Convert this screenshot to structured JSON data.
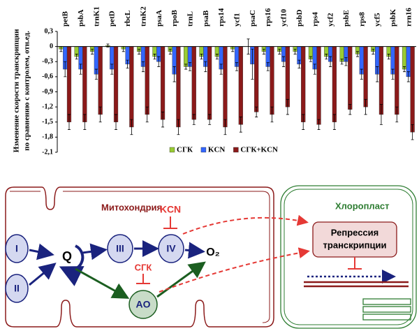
{
  "chart_data": {
    "type": "bar",
    "y_label": [
      "Изменение скорости транскрипции",
      "по сравнению с контролем, отн.ед."
    ],
    "categories": [
      "petB",
      "psbA",
      "trnK1",
      "petD",
      "rbcL",
      "trnK2",
      "psaA",
      "rpoB",
      "trnL",
      "psaB",
      "rps14",
      "ycf1",
      "psaC",
      "rps16",
      "ycf10",
      "psbD",
      "rps4",
      "ycf2",
      "psbE",
      "rps8",
      "ycf5",
      "psbK",
      "rrn16"
    ],
    "series": [
      {
        "name": "СГК",
        "color": "#99cc33",
        "values": [
          -0.05,
          -0.2,
          -0.1,
          0.02,
          -0.05,
          -0.1,
          -0.2,
          -0.1,
          -0.4,
          -0.2,
          -0.2,
          -0.05,
          0,
          -0.1,
          -0.1,
          -0.1,
          -0.25,
          -0.2,
          -0.3,
          -0.15,
          -0.1,
          -0.2,
          -0.45
        ],
        "errors": [
          0.05,
          0.05,
          0.05,
          0.03,
          0.05,
          0.05,
          0.05,
          0.05,
          0.05,
          0.05,
          0.05,
          0.05,
          0.15,
          0.05,
          0.05,
          0.05,
          0.05,
          0.05,
          0.05,
          0.05,
          0.05,
          0.05,
          0.05
        ]
      },
      {
        "name": "KCN",
        "color": "#3366ff",
        "values": [
          -0.45,
          -0.45,
          -0.55,
          -0.45,
          -0.35,
          -0.4,
          -0.3,
          -0.55,
          -0.4,
          -0.4,
          -0.45,
          -0.4,
          -0.35,
          -0.4,
          -0.3,
          -0.35,
          -0.45,
          -0.3,
          -0.3,
          -0.55,
          -0.55,
          -0.55,
          -0.6
        ],
        "errors": [
          0.15,
          0.1,
          0.1,
          0.1,
          0.08,
          0.1,
          0.1,
          0.15,
          0.08,
          0.1,
          0.1,
          0.08,
          0.3,
          0.08,
          0.1,
          0.08,
          0.1,
          0.1,
          0.08,
          0.1,
          0.15,
          0.1,
          0.1
        ]
      },
      {
        "name": "СГК+KCN",
        "color": "#8b1a1a",
        "values": [
          -1.5,
          -1.5,
          -1.35,
          -1.5,
          -1.6,
          -1.35,
          -1.45,
          -1.6,
          -1.45,
          -1.45,
          -1.6,
          -1.55,
          -1.3,
          -1.35,
          -1.2,
          -1.5,
          -1.55,
          -1.5,
          -1.25,
          -1.2,
          -1.35,
          -1.35,
          -1.7
        ],
        "errors": [
          0.15,
          0.15,
          0.15,
          0.15,
          0.15,
          0.15,
          0.15,
          0.15,
          0.1,
          0.1,
          0.15,
          0.15,
          0.1,
          0.15,
          0.15,
          0.15,
          0.1,
          0.15,
          0.1,
          0.15,
          0.2,
          0.15,
          0.15
        ]
      }
    ],
    "ylim": [
      -2.1,
      0.3
    ],
    "yticks": [
      {
        "value": 0.3,
        "label": "0,3"
      },
      0,
      {
        "value": -0.3,
        "label": "-0,3"
      },
      {
        "value": -0.6,
        "label": "-0,6"
      },
      {
        "value": -0.9,
        "label": "-0,9"
      },
      {
        "value": -1.2,
        "label": "-1,2"
      },
      {
        "value": -1.5,
        "label": "-1,5"
      },
      {
        "value": -1.8,
        "label": "-1,8"
      },
      {
        "value": -2.1,
        "label": "-2,1"
      }
    ]
  },
  "diagram": {
    "mito_label": "Митохондрия",
    "chloro_label": "Хлоропласт",
    "nodes": [
      "I",
      "II",
      "Q",
      "III",
      "IV",
      "O₂",
      "AO"
    ],
    "inhibitors": [
      "KCN",
      "СГК"
    ],
    "repression": [
      "Репрессия",
      "транскрипции"
    ]
  }
}
